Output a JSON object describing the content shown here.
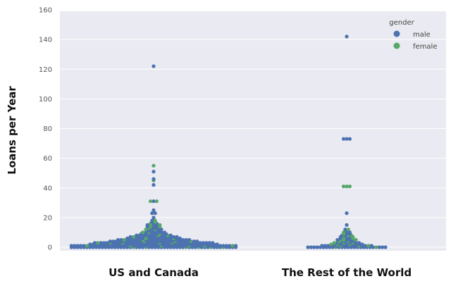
{
  "chart_data": {
    "type": "scatter",
    "subtype": "swarm",
    "title": "",
    "xlabel": "",
    "ylabel": "Loans per Year",
    "categories": [
      "US and Canada",
      "The Rest of the World"
    ],
    "ylim": [
      0,
      160
    ],
    "yticks": [
      0,
      20,
      40,
      60,
      80,
      100,
      120,
      140,
      160
    ],
    "grid": true,
    "legend": {
      "title": "gender",
      "position": "top-right"
    },
    "series": [
      {
        "name": "male",
        "color": "#4c72b0",
        "points": [
          [
            0,
            0,
            58
          ],
          [
            0,
            1,
            50
          ],
          [
            0,
            2,
            42
          ],
          [
            0,
            3,
            34
          ],
          [
            0,
            4,
            26
          ],
          [
            0,
            5,
            22
          ],
          [
            0,
            6,
            16
          ],
          [
            0,
            7,
            14
          ],
          [
            0,
            8,
            10
          ],
          [
            0,
            9,
            8
          ],
          [
            0,
            10,
            6
          ],
          [
            0,
            11,
            5
          ],
          [
            0,
            12,
            4
          ],
          [
            0,
            13,
            3
          ],
          [
            0,
            14,
            3
          ],
          [
            0,
            15,
            3
          ],
          [
            0,
            16,
            2
          ],
          [
            0,
            17,
            1
          ],
          [
            0,
            18,
            1
          ],
          [
            0,
            20,
            1
          ],
          [
            0,
            23,
            2
          ],
          [
            0,
            25,
            1
          ],
          [
            0,
            31,
            1
          ],
          [
            0,
            42,
            1
          ],
          [
            0,
            46,
            1
          ],
          [
            0,
            51,
            1
          ],
          [
            0,
            122,
            1
          ],
          [
            1,
            0,
            24
          ],
          [
            1,
            1,
            14
          ],
          [
            1,
            2,
            8
          ],
          [
            1,
            3,
            6
          ],
          [
            1,
            4,
            4
          ],
          [
            1,
            5,
            4
          ],
          [
            1,
            6,
            3
          ],
          [
            1,
            7,
            3
          ],
          [
            1,
            8,
            2
          ],
          [
            1,
            9,
            2
          ],
          [
            1,
            10,
            2
          ],
          [
            1,
            11,
            1
          ],
          [
            1,
            12,
            1
          ],
          [
            1,
            15,
            1
          ],
          [
            1,
            23,
            1
          ],
          [
            1,
            73,
            3
          ],
          [
            1,
            142,
            1
          ]
        ]
      },
      {
        "name": "female",
        "color": "#55a868",
        "points": [
          [
            0,
            0,
            8
          ],
          [
            0,
            1,
            6
          ],
          [
            0,
            3,
            5
          ],
          [
            0,
            4,
            3
          ],
          [
            0,
            5,
            2
          ],
          [
            0,
            6,
            2
          ],
          [
            0,
            7,
            2
          ],
          [
            0,
            8,
            2
          ],
          [
            0,
            9,
            1
          ],
          [
            0,
            10,
            2
          ],
          [
            0,
            12,
            2
          ],
          [
            0,
            13,
            1
          ],
          [
            0,
            14,
            2
          ],
          [
            0,
            15,
            2
          ],
          [
            0,
            16,
            1
          ],
          [
            0,
            17,
            1
          ],
          [
            0,
            18,
            1
          ],
          [
            0,
            31,
            2
          ],
          [
            0,
            45,
            1
          ],
          [
            0,
            55,
            1
          ],
          [
            1,
            0,
            2
          ],
          [
            1,
            1,
            3
          ],
          [
            1,
            2,
            3
          ],
          [
            1,
            3,
            3
          ],
          [
            1,
            4,
            2
          ],
          [
            1,
            5,
            3
          ],
          [
            1,
            6,
            2
          ],
          [
            1,
            7,
            2
          ],
          [
            1,
            8,
            2
          ],
          [
            1,
            9,
            1
          ],
          [
            1,
            10,
            1
          ],
          [
            1,
            12,
            1
          ],
          [
            1,
            41,
            3
          ]
        ]
      }
    ]
  }
}
